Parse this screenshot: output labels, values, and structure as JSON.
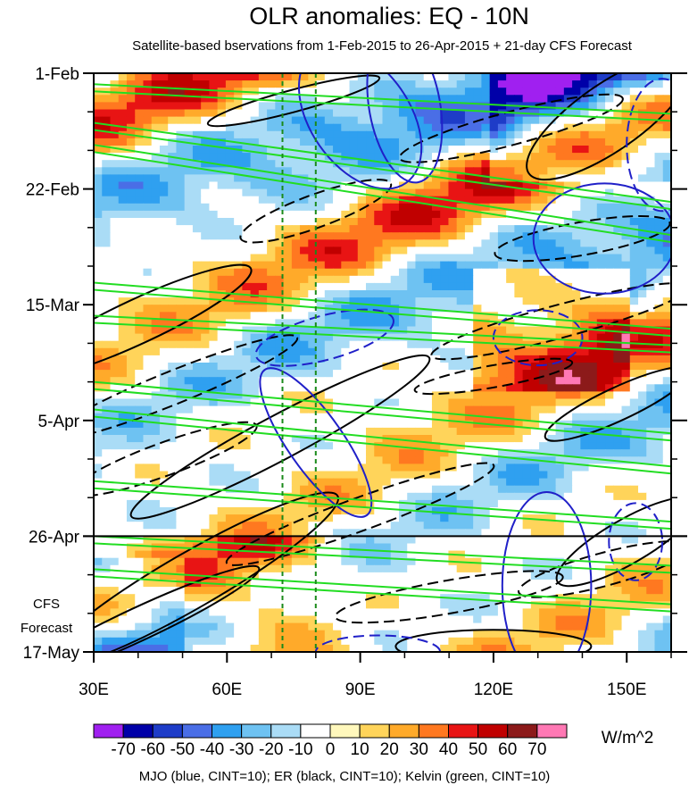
{
  "chart_data": {
    "type": "heatmap",
    "title": "OLR anomalies: EQ - 10N",
    "subtitle": "Satellite-based bservations from 1-Feb-2015 to 26-Apr-2015 + 21-day CFS Forecast",
    "x_axis": {
      "range": [
        30,
        160
      ],
      "ticks": [
        {
          "value": 30,
          "label": "30E"
        },
        {
          "value": 60,
          "label": "60E"
        },
        {
          "value": 90,
          "label": "90E"
        },
        {
          "value": 120,
          "label": "120E"
        },
        {
          "value": 150,
          "label": "150E"
        }
      ]
    },
    "y_axis": {
      "range_days": [
        0,
        105
      ],
      "direction": "time increases downward",
      "ticks": [
        {
          "day": 0,
          "label": "1-Feb"
        },
        {
          "day": 21,
          "label": "22-Feb"
        },
        {
          "day": 42,
          "label": "15-Mar"
        },
        {
          "day": 63,
          "label": "5-Apr"
        },
        {
          "day": 84,
          "label": "26-Apr"
        },
        {
          "day": 105,
          "label": "17-May"
        }
      ]
    },
    "forecast_start_day": 84,
    "forecast_label_lines": [
      "CFS",
      "Forecast"
    ],
    "reference_longitudes_dashed": [
      72.5,
      80
    ],
    "colorbar": {
      "units": "W/m^2",
      "levels": [
        -70,
        -60,
        -50,
        -40,
        -30,
        -20,
        -10,
        0,
        10,
        20,
        30,
        40,
        50,
        60,
        70
      ],
      "level_labels": [
        "-70",
        "-60",
        "-50",
        "-40",
        "-30",
        "-20",
        "-10",
        "0",
        "10",
        "20",
        "30",
        "40",
        "50",
        "60",
        "70"
      ],
      "colors": [
        "#a020f0",
        "#0000a8",
        "#1e3cc8",
        "#4a6ee6",
        "#2fa0f0",
        "#6ec2f2",
        "#aadcf6",
        "#ffffff",
        "#fff8bc",
        "#ffd45a",
        "#ffaa2a",
        "#ff7820",
        "#e81414",
        "#c00000",
        "#8c1a1a",
        "#ff78b4"
      ]
    },
    "contour_legend": "MJO (blue, CINT=10); ER (black, CINT=10); Kelvin (green, CINT=10)",
    "series_styles": {
      "mjo": "#2020c8",
      "er": "#000000",
      "kelvin": "#22dd22"
    }
  }
}
